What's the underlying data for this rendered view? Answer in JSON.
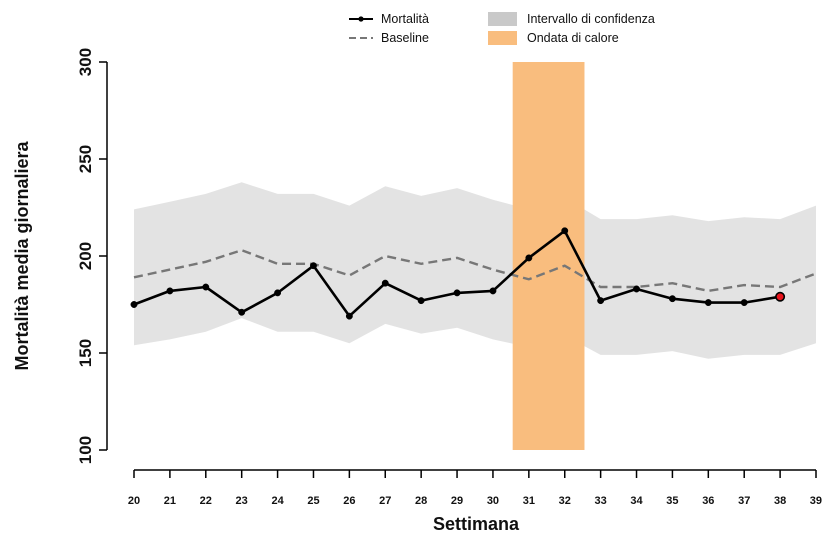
{
  "chart_data": {
    "type": "line",
    "xlabel": "Settimana",
    "ylabel": "Mortalità media giornaliera",
    "x": [
      20,
      21,
      22,
      23,
      24,
      25,
      26,
      27,
      28,
      29,
      30,
      31,
      32,
      33,
      34,
      35,
      36,
      37,
      38
    ],
    "x_ticks": [
      20,
      21,
      22,
      23,
      24,
      25,
      26,
      27,
      28,
      29,
      30,
      31,
      32,
      33,
      34,
      35,
      36,
      37,
      38,
      39
    ],
    "y_ticks": [
      100,
      150,
      200,
      250,
      300
    ],
    "xlim": [
      20,
      39
    ],
    "ylim": [
      100,
      300
    ],
    "series": [
      {
        "name": "Mortalità",
        "values": [
          175,
          182,
          184,
          171,
          181,
          195,
          169,
          186,
          177,
          181,
          182,
          199,
          213,
          177,
          183,
          178,
          176,
          176,
          179
        ],
        "color": "#000000",
        "style": "solid-with-points",
        "last_point_color": "#e8141c"
      },
      {
        "name": "Baseline",
        "x": [
          20,
          21,
          22,
          23,
          24,
          25,
          26,
          27,
          28,
          29,
          30,
          31,
          32,
          33,
          34,
          35,
          36,
          37,
          38,
          39
        ],
        "values": [
          189,
          193,
          197,
          203,
          196,
          196,
          190,
          200,
          196,
          199,
          193,
          188,
          195,
          184,
          184,
          186,
          182,
          185,
          184,
          191
        ],
        "color": "#777777",
        "style": "dashed"
      }
    ],
    "confidence_interval": {
      "name": "Intervallo di confidenza",
      "x": [
        20,
        21,
        22,
        23,
        24,
        25,
        26,
        27,
        28,
        29,
        30,
        31,
        32,
        33,
        34,
        35,
        36,
        37,
        38,
        39
      ],
      "upper": [
        224,
        228,
        232,
        238,
        232,
        232,
        226,
        236,
        231,
        235,
        229,
        224,
        230,
        219,
        219,
        221,
        218,
        220,
        219,
        226
      ],
      "lower": [
        154,
        157,
        161,
        168,
        161,
        161,
        155,
        165,
        160,
        163,
        157,
        153,
        159,
        149,
        149,
        151,
        147,
        149,
        149,
        155
      ],
      "color": "#e3e3e3"
    },
    "heatwave": {
      "name": "Ondata di calore",
      "x_start": 30.55,
      "x_end": 32.55,
      "color": "#f9bd7e"
    },
    "legend": {
      "placement": "top-center",
      "items": [
        {
          "label": "Mortalità",
          "kind": "line-point"
        },
        {
          "label": "Baseline",
          "kind": "dashed"
        },
        {
          "label": "Intervallo di confidenza",
          "kind": "box-grey"
        },
        {
          "label": "Ondata di calore",
          "kind": "box-orange"
        }
      ]
    },
    "grid": false
  }
}
